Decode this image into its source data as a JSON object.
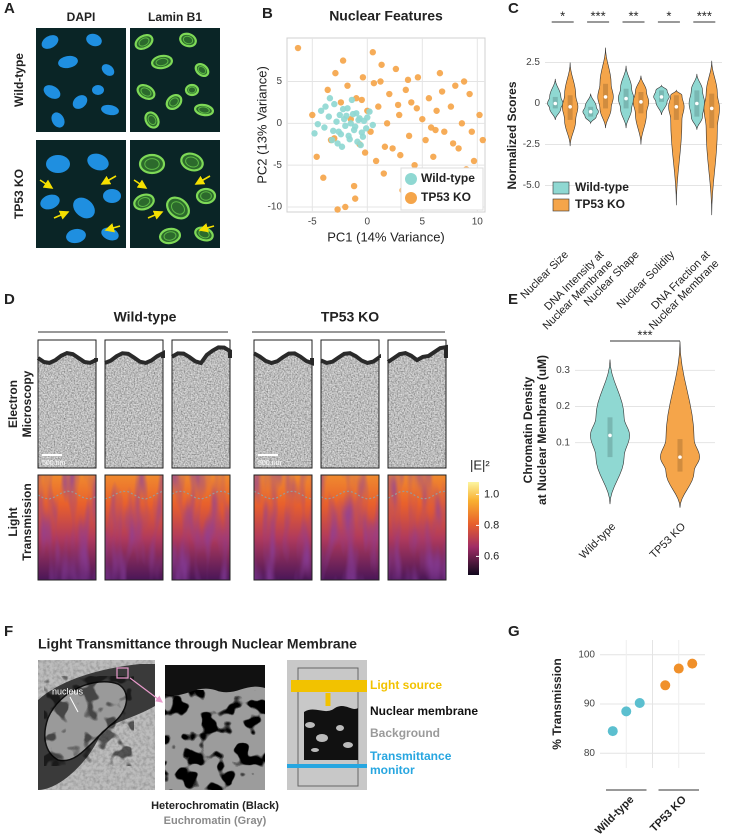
{
  "panel_labels": [
    "A",
    "B",
    "C",
    "D",
    "E",
    "F",
    "G"
  ],
  "panel_a": {
    "columns": [
      "DAPI",
      "Lamin B1"
    ],
    "rows": [
      "Wild-type",
      "TP53 KO"
    ]
  },
  "chart_data": [
    {
      "type": "scatter",
      "title": "Nuclear Features",
      "xlabel": "PC1 (14% Variance)",
      "ylabel": "PC2 (13% Variance)",
      "xlim": [
        -7.3,
        10.7
      ],
      "ylim": [
        -10.6,
        10.2
      ],
      "xticks": [
        -5,
        0,
        5,
        10
      ],
      "yticks": [
        -10,
        -5,
        0,
        5
      ],
      "grid": true,
      "legend": "lower right",
      "series": [
        {
          "name": "Wild-type",
          "color": "#8fd8d2",
          "x": [
            -4.8,
            -4.2,
            -3.9,
            -3.5,
            -3.2,
            -3.0,
            -2.8,
            -2.6,
            -2.5,
            -2.3,
            -2.1,
            -2.0,
            -1.8,
            -1.7,
            -1.5,
            -1.4,
            -1.2,
            -1.0,
            -0.9,
            -0.7,
            -0.5,
            -0.3,
            -0.1,
            0.2,
            0.5,
            -3.8,
            -3.1,
            -2.7,
            -2.2,
            -1.9,
            -1.6,
            -1.1,
            -0.8,
            -0.4,
            0.0,
            -4.5,
            -3.4,
            -2.4,
            -1.3,
            -0.6
          ],
          "values": [
            -1.2,
            1.5,
            -0.5,
            0.8,
            -2.0,
            2.3,
            0.2,
            -1.0,
            1.0,
            -2.8,
            0.5,
            -0.3,
            1.8,
            -1.5,
            0.0,
            2.8,
            -0.8,
            1.2,
            -2.2,
            0.6,
            -1.1,
            0.3,
            -0.6,
            1.4,
            -0.2,
            2.0,
            -0.9,
            -2.4,
            1.7,
            0.9,
            -1.9,
            -0.4,
            0.4,
            -1.6,
            0.7,
            -0.1,
            3.0,
            -1.3,
            1.1,
            -2.6
          ]
        },
        {
          "name": "TP53 KO",
          "color": "#f5a54a",
          "x": [
            -6.3,
            -5.0,
            -4.6,
            -4.0,
            -3.6,
            -3.3,
            -2.9,
            -2.7,
            -2.4,
            -2.0,
            -1.8,
            -1.5,
            -1.2,
            -1.0,
            -0.7,
            -0.4,
            -0.2,
            0.0,
            0.3,
            0.5,
            0.8,
            1.0,
            1.2,
            1.5,
            1.8,
            2.0,
            2.3,
            2.6,
            2.9,
            3.2,
            3.5,
            3.8,
            4.0,
            4.3,
            4.6,
            5.0,
            5.3,
            5.6,
            6.0,
            6.3,
            6.6,
            7.0,
            7.3,
            7.6,
            8.0,
            8.3,
            8.6,
            9.0,
            9.3,
            9.7,
            10.2,
            10.5,
            -2.2,
            -1.1,
            0.6,
            1.6,
            2.8,
            3.7,
            4.8,
            5.8,
            6.8,
            7.8,
            8.8,
            -3.0,
            -0.5,
            1.3,
            3.0,
            4.5,
            6.2,
            9.5
          ],
          "values": [
            9.0,
            1.0,
            -4.0,
            -6.5,
            4.0,
            -2.0,
            6.0,
            -10.3,
            2.5,
            -10.0,
            4.5,
            0.5,
            -7.5,
            3.0,
            -2.5,
            5.5,
            -3.5,
            1.5,
            -1.0,
            8.5,
            -4.5,
            2.0,
            5.0,
            -6.0,
            0.0,
            3.5,
            -3.0,
            6.5,
            1.0,
            -8.0,
            4.0,
            -1.5,
            2.5,
            -5.0,
            5.5,
            0.5,
            -2.0,
            3.0,
            -4.0,
            1.5,
            6.0,
            -1.0,
            -6.5,
            2.0,
            4.5,
            -3.0,
            0.0,
            -5.5,
            3.5,
            -4.5,
            1.0,
            -2.0,
            7.5,
            -9.0,
            4.8,
            -2.8,
            2.2,
            5.2,
            -7.0,
            -0.5,
            3.8,
            -2.4,
            5.0,
            -1.8,
            2.8,
            7.0,
            -3.8,
            1.8,
            -0.8,
            -1.0
          ]
        }
      ]
    },
    {
      "type": "violin",
      "ylabel": "Normalized Scores",
      "categories": [
        [
          "Nuclear Size"
        ],
        [
          "DNA Intensity at",
          "Nuclear Membrane"
        ],
        [
          "Nuclear Shape"
        ],
        [
          "Nuclear Solidity"
        ],
        [
          "DNA Fraction at",
          "Nuclear Membrane"
        ]
      ],
      "significance": [
        "*",
        "***",
        "**",
        "*",
        "***"
      ],
      "ylim": [
        -8.5,
        4.6
      ],
      "yticks": [
        2.5,
        0,
        -2.5,
        {
          "value": -5,
          "label": "-5.0"
        }
      ],
      "grid": true,
      "legend": "lower left",
      "series": [
        {
          "name": "Wild-type",
          "color": "#8fd8d2",
          "min": [
            -1.0,
            -1.2,
            -1.5,
            -0.7,
            -1.6
          ],
          "q1": [
            -0.3,
            -0.8,
            -0.3,
            0.1,
            -0.8
          ],
          "median": [
            0.0,
            -0.5,
            0.3,
            0.4,
            0.0
          ],
          "q3": [
            0.4,
            -0.2,
            0.9,
            0.8,
            0.8
          ],
          "max": [
            1.5,
            0.6,
            2.3,
            1.1,
            1.8
          ]
        },
        {
          "name": "TP53 KO",
          "color": "#f5a54a",
          "min": [
            -2.6,
            -1.5,
            -2.5,
            -6.2,
            -6.8
          ],
          "q1": [
            -1.0,
            -0.3,
            -0.6,
            -1.0,
            -1.5
          ],
          "median": [
            -0.2,
            0.4,
            0.1,
            -0.2,
            -0.3
          ],
          "q3": [
            0.5,
            1.2,
            0.7,
            0.5,
            0.6
          ],
          "max": [
            2.5,
            3.4,
            1.7,
            0.8,
            2.6
          ]
        }
      ]
    },
    {
      "type": "violin",
      "ylabel": [
        "Chromatin Density",
        "at Nuclear Membrane (uM)"
      ],
      "categories": [
        "Wild-type",
        "TP53 KO"
      ],
      "colors": [
        "#8fd8d2",
        "#f5a54a"
      ],
      "significance": "***",
      "min": [
        -0.07,
        -0.08
      ],
      "q1": [
        0.06,
        0.02
      ],
      "median": [
        0.12,
        0.06
      ],
      "q3": [
        0.17,
        0.11
      ],
      "max": [
        0.33,
        0.38
      ],
      "ylim": [
        -0.1,
        0.37
      ],
      "yticks": [
        0.1,
        0.2,
        0.3
      ],
      "grid": true
    },
    {
      "type": "strip",
      "ylabel": "% Transmission",
      "ylim": [
        77,
        103
      ],
      "yticks": [
        80,
        90,
        100
      ],
      "grid": true,
      "series": [
        {
          "name": "Wild-type",
          "color": "#5bbfcf",
          "values": [
            84.5,
            88.5,
            90.2
          ]
        },
        {
          "name": "TP53 KO",
          "color": "#f0902a",
          "values": [
            93.8,
            97.2,
            98.2
          ]
        }
      ]
    }
  ],
  "panel_d": {
    "groups": [
      "Wild-type",
      "TP53 KO"
    ],
    "rows": [
      [
        "Electron",
        "Microscopy"
      ],
      [
        "Light",
        "Transmission"
      ]
    ],
    "scale_bars": [
      "500 nm",
      "500 nm"
    ],
    "colorbar": {
      "label": "|E|²",
      "lim": [
        0.48,
        1.08
      ],
      "ticks": [
        {
          "value": 1,
          "label": "1.0"
        },
        0.8,
        0.6
      ]
    }
  },
  "panel_f": {
    "title": "Light Transmittance through Nuclear Membrane",
    "nucleus_label": "nucleus",
    "captions": [
      "Heterochromatin (Black)",
      "Euchromatin (Gray)"
    ],
    "legend": [
      {
        "label": [
          "Light source"
        ],
        "color": "#f2c200"
      },
      {
        "label": [
          "Nuclear membrane"
        ],
        "color": "#111111"
      },
      {
        "label": [
          "Background"
        ],
        "color": "#9a9a9a"
      },
      {
        "label": [
          "Transmittance",
          "monitor"
        ],
        "color": "#27a6e0"
      }
    ]
  }
}
